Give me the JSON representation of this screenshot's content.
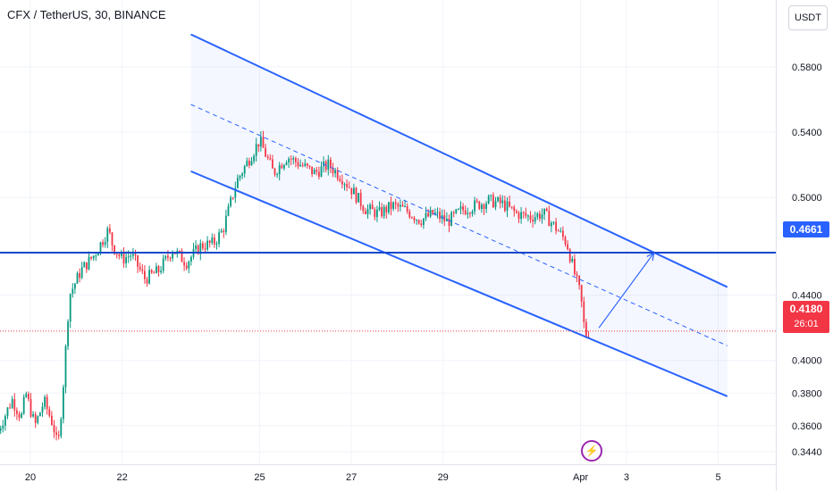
{
  "header": {
    "symbol_title": "CFX / TetherUS, 30, BINANCE",
    "currency_button": "USDT"
  },
  "price_tags": {
    "level_value": "0.4661",
    "last_price": "0.4180",
    "countdown": "26:01"
  },
  "icons": {
    "flash": "lightning-icon"
  },
  "colors": {
    "channel": "#2962ff",
    "up": "#089981",
    "down": "#f23645",
    "accent": "#9c27b0",
    "channel_fill": "rgba(41,98,255,0.05)"
  },
  "chart_data": {
    "type": "candlestick",
    "title": "CFX / TetherUS, 30, BINANCE",
    "ylim": [
      0.34,
      0.6
    ],
    "y_ticks": [
      "0.3440",
      "0.3600",
      "0.3800",
      "0.4000",
      "0.4400",
      "0.4661",
      "0.5000",
      "0.5400",
      "0.5800"
    ],
    "x_ticks": [
      "20",
      "22",
      "25",
      "27",
      "29",
      "Apr",
      "3",
      "5"
    ],
    "x_tick_days": [
      20,
      22,
      25,
      27,
      29,
      32,
      33,
      35
    ],
    "price_path": [
      [
        19.3,
        0.357
      ],
      [
        19.6,
        0.376
      ],
      [
        19.8,
        0.365
      ],
      [
        19.9,
        0.38
      ],
      [
        20.1,
        0.36
      ],
      [
        20.3,
        0.375
      ],
      [
        20.5,
        0.36
      ],
      [
        20.6,
        0.346
      ],
      [
        20.7,
        0.378
      ],
      [
        20.85,
        0.44
      ],
      [
        21.1,
        0.455
      ],
      [
        21.4,
        0.465
      ],
      [
        21.7,
        0.48
      ],
      [
        21.8,
        0.47
      ],
      [
        22.0,
        0.462
      ],
      [
        22.2,
        0.465
      ],
      [
        22.5,
        0.45
      ],
      [
        22.8,
        0.455
      ],
      [
        23.1,
        0.468
      ],
      [
        23.4,
        0.46
      ],
      [
        23.7,
        0.47
      ],
      [
        24.0,
        0.472
      ],
      [
        24.2,
        0.48
      ],
      [
        24.5,
        0.51
      ],
      [
        24.8,
        0.525
      ],
      [
        25.0,
        0.535
      ],
      [
        25.3,
        0.515
      ],
      [
        25.6,
        0.525
      ],
      [
        25.9,
        0.52
      ],
      [
        26.2,
        0.515
      ],
      [
        26.5,
        0.52
      ],
      [
        26.8,
        0.512
      ],
      [
        27.0,
        0.505
      ],
      [
        27.3,
        0.493
      ],
      [
        27.6,
        0.49
      ],
      [
        27.9,
        0.495
      ],
      [
        28.2,
        0.492
      ],
      [
        28.5,
        0.486
      ],
      [
        28.8,
        0.49
      ],
      [
        29.1,
        0.485
      ],
      [
        29.4,
        0.492
      ],
      [
        29.7,
        0.495
      ],
      [
        30.0,
        0.498
      ],
      [
        30.3,
        0.496
      ],
      [
        30.6,
        0.49
      ],
      [
        30.9,
        0.488
      ],
      [
        31.2,
        0.49
      ],
      [
        31.5,
        0.48
      ],
      [
        31.7,
        0.472
      ],
      [
        31.85,
        0.455
      ],
      [
        32.0,
        0.44
      ],
      [
        32.1,
        0.415
      ],
      [
        32.2,
        0.418
      ]
    ],
    "channel": {
      "upper": [
        [
          23.5,
          0.6
        ],
        [
          35.2,
          0.445
        ]
      ],
      "middle": [
        [
          23.5,
          0.557
        ],
        [
          35.2,
          0.409
        ]
      ],
      "lower": [
        [
          23.5,
          0.516
        ],
        [
          35.2,
          0.378
        ]
      ]
    },
    "horizontal_level": 0.4661,
    "last_price": 0.418,
    "projection_arrow": [
      [
        32.4,
        0.42
      ],
      [
        33.6,
        0.466
      ]
    ]
  }
}
